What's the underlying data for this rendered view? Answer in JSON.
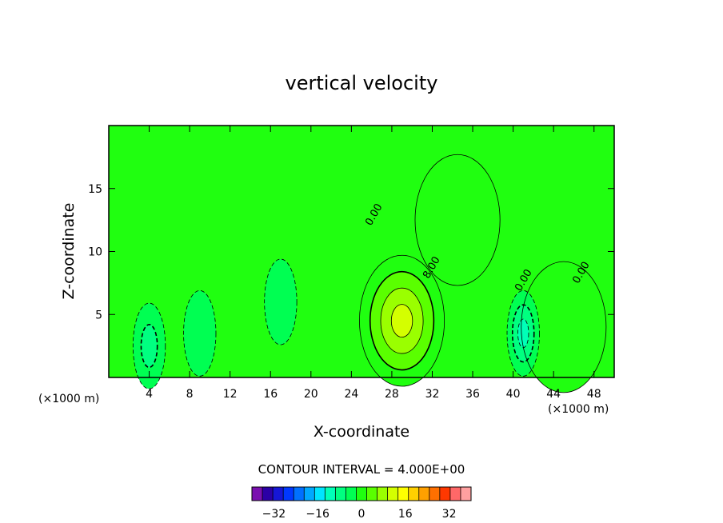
{
  "chart_data": {
    "type": "contour",
    "title": "vertical velocity",
    "xlabel": "X-coordinate",
    "ylabel": "Z-coordinate",
    "x_unit_label": "(×1000 m)",
    "x_unit_label_right": "(×1000 m)",
    "xlim": [
      0,
      50
    ],
    "ylim": [
      0,
      20
    ],
    "x_ticks": [
      4,
      8,
      12,
      16,
      20,
      24,
      28,
      32,
      36,
      40,
      44,
      48
    ],
    "y_ticks": [
      5,
      10,
      15
    ],
    "contour_interval_text": "CONTOUR INTERVAL = 4.000E+00",
    "contour_labels": [
      {
        "text": "0.00",
        "x": 26.5,
        "y": 12.8
      },
      {
        "text": "8.00",
        "x": 32.2,
        "y": 8.6
      },
      {
        "text": "0.00",
        "x": 41.3,
        "y": 7.6
      },
      {
        "text": "0.00",
        "x": 47.0,
        "y": 8.2
      }
    ],
    "colorbar": {
      "ticks": [
        -32,
        -16,
        0,
        16,
        32
      ],
      "tick_labels": [
        "−32",
        "−16",
        "0",
        "16",
        "32"
      ],
      "levels": [
        -40,
        -36,
        -32,
        -28,
        -24,
        -20,
        -16,
        -12,
        -8,
        -4,
        0,
        4,
        8,
        12,
        16,
        20,
        24,
        28,
        32,
        36,
        40
      ],
      "colors": [
        "#7a10b0",
        "#2b00a6",
        "#1616d6",
        "#0038ff",
        "#0070ff",
        "#00a8ff",
        "#00e4ff",
        "#00ffb8",
        "#00ff80",
        "#00ff52",
        "#20ff10",
        "#5aff00",
        "#9aff00",
        "#d4ff00",
        "#ffff00",
        "#ffd000",
        "#ffa000",
        "#ff7000",
        "#ff3800",
        "#ff6868",
        "#ffa0a0"
      ]
    },
    "features": [
      {
        "kind": "updraft",
        "x": 29.0,
        "z": 4.5,
        "peak": 16
      },
      {
        "kind": "updraft",
        "x": 34.5,
        "z": 12.5,
        "peak": 6
      },
      {
        "kind": "updraft",
        "x": 45.0,
        "z": 4.0,
        "peak": 6
      },
      {
        "kind": "downdraft",
        "x": 41.0,
        "z": 3.5,
        "peak": -14
      },
      {
        "kind": "downdraft",
        "x": 4.0,
        "z": 2.5,
        "peak": -10
      },
      {
        "kind": "downdraft",
        "x": 9.0,
        "z": 3.5,
        "peak": -6
      },
      {
        "kind": "downdraft",
        "x": 17.0,
        "z": 6.0,
        "peak": -6
      }
    ],
    "background_level": 0,
    "grid": false,
    "legend_placement": "bottom"
  }
}
